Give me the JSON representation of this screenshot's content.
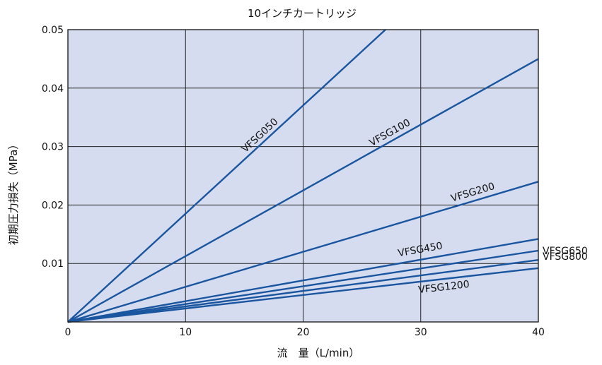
{
  "chart_data": {
    "type": "line",
    "title": "10インチカートリッジ",
    "xlabel": "流　量（L/min）",
    "ylabel": "初期圧力損失（MPa）",
    "xlim": [
      0,
      40
    ],
    "ylim": [
      0,
      0.05
    ],
    "x_ticks": [
      "0",
      "10",
      "20",
      "30",
      "40"
    ],
    "y_ticks": [
      "0.01",
      "0.02",
      "0.03",
      "0.04",
      "0.05"
    ],
    "grid": true,
    "background_color": "#d6dcef",
    "line_color": "#1a56a0",
    "series": [
      {
        "name": "VFSG050",
        "x": [
          0,
          27
        ],
        "y": [
          0,
          0.05
        ]
      },
      {
        "name": "VFSG100",
        "x": [
          0,
          40
        ],
        "y": [
          0,
          0.045
        ]
      },
      {
        "name": "VFSG200",
        "x": [
          0,
          40
        ],
        "y": [
          0,
          0.024
        ]
      },
      {
        "name": "VFSG450",
        "x": [
          0,
          40
        ],
        "y": [
          0,
          0.0142
        ]
      },
      {
        "name": "VFSG650",
        "x": [
          0,
          40
        ],
        "y": [
          0,
          0.0122
        ]
      },
      {
        "name": "VFSG800",
        "x": [
          0,
          40
        ],
        "y": [
          0,
          0.0106
        ]
      },
      {
        "name": "VFSG1200",
        "x": [
          0,
          40
        ],
        "y": [
          0,
          0.0092
        ]
      }
    ]
  }
}
